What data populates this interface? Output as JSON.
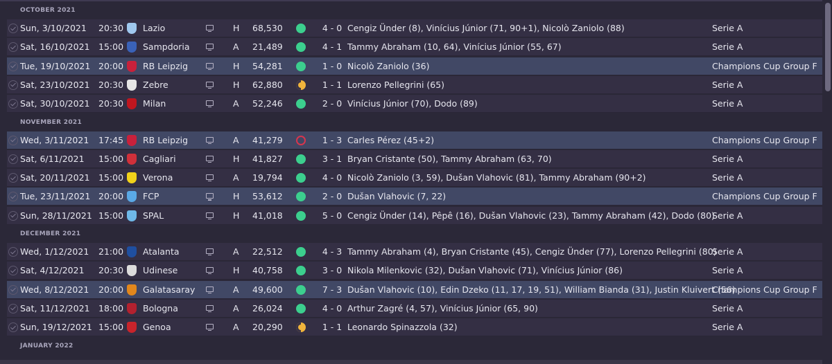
{
  "months": [
    {
      "label": "OCTOBER 2021",
      "fixtures": [
        {
          "date": "Sun, 3/10/2021",
          "time": "20:30",
          "team": "Lazio",
          "crest_color": "#9fc8ee",
          "venue": "H",
          "attendance": "68,530",
          "result": "win",
          "score": "4 - 0",
          "scorers": "Cengiz Ünder (8), Vinícius Júnior (71, 90+1), Nicolò Zaniolo (88)",
          "competition": "Serie A",
          "highlight": false
        },
        {
          "date": "Sat, 16/10/2021",
          "time": "15:00",
          "team": "Sampdoria",
          "crest_color": "#3a62b8",
          "venue": "A",
          "attendance": "21,489",
          "result": "win",
          "score": "4 - 1",
          "scorers": "Tammy Abraham (10, 64), Vinícius Júnior (55, 67)",
          "competition": "Serie A",
          "highlight": false
        },
        {
          "date": "Tue, 19/10/2021",
          "time": "20:00",
          "team": "RB Leipzig",
          "crest_color": "#c8213b",
          "venue": "H",
          "attendance": "54,281",
          "result": "win",
          "score": "1 - 0",
          "scorers": "Nicolò Zaniolo (36)",
          "competition": "Champions Cup Group F",
          "highlight": true
        },
        {
          "date": "Sat, 23/10/2021",
          "time": "20:30",
          "team": "Zebre",
          "crest_color": "#e6e6e6",
          "venue": "H",
          "attendance": "62,880",
          "result": "draw",
          "score": "1 - 1",
          "scorers": "Lorenzo Pellegrini (65)",
          "competition": "Serie A",
          "highlight": false
        },
        {
          "date": "Sat, 30/10/2021",
          "time": "20:30",
          "team": "Milan",
          "crest_color": "#c0161f",
          "venue": "A",
          "attendance": "52,246",
          "result": "win",
          "score": "2 - 0",
          "scorers": "Vinícius Júnior (70), Dodo (89)",
          "competition": "Serie A",
          "highlight": false
        }
      ]
    },
    {
      "label": "NOVEMBER 2021",
      "fixtures": [
        {
          "date": "Wed, 3/11/2021",
          "time": "17:45",
          "team": "RB Leipzig",
          "crest_color": "#c8213b",
          "venue": "A",
          "attendance": "41,279",
          "result": "loss",
          "score": "1 - 3",
          "scorers": "Carles Pérez (45+2)",
          "competition": "Champions Cup Group F",
          "highlight": true
        },
        {
          "date": "Sat, 6/11/2021",
          "time": "15:00",
          "team": "Cagliari",
          "crest_color": "#d0303a",
          "venue": "H",
          "attendance": "41,827",
          "result": "win",
          "score": "3 - 1",
          "scorers": "Bryan Cristante (50), Tammy Abraham (63, 70)",
          "competition": "Serie A",
          "highlight": false
        },
        {
          "date": "Sat, 20/11/2021",
          "time": "15:00",
          "team": "Verona",
          "crest_color": "#f1d21a",
          "venue": "A",
          "attendance": "19,794",
          "result": "win",
          "score": "4 - 0",
          "scorers": "Nicolò Zaniolo (3, 59), Dušan Vlahovic (81), Tammy Abraham (90+2)",
          "competition": "Serie A",
          "highlight": false
        },
        {
          "date": "Tue, 23/11/2021",
          "time": "20:00",
          "team": "FCP",
          "crest_color": "#5aa9e6",
          "venue": "H",
          "attendance": "53,612",
          "result": "win",
          "score": "2 - 0",
          "scorers": "Dušan Vlahovic (7, 22)",
          "competition": "Champions Cup Group F",
          "highlight": true
        },
        {
          "date": "Sun, 28/11/2021",
          "time": "15:00",
          "team": "SPAL",
          "crest_color": "#6fb9e8",
          "venue": "H",
          "attendance": "41,018",
          "result": "win",
          "score": "5 - 0",
          "scorers": "Cengiz Ünder (14), Pêpê (16), Dušan Vlahovic (23), Tammy Abraham (42), Dodo (80)",
          "competition": "Serie A",
          "highlight": false
        }
      ]
    },
    {
      "label": "DECEMBER 2021",
      "fixtures": [
        {
          "date": "Wed, 1/12/2021",
          "time": "21:00",
          "team": "Atalanta",
          "crest_color": "#1f4fa0",
          "venue": "A",
          "attendance": "22,512",
          "result": "win",
          "score": "4 - 3",
          "scorers": "Tammy Abraham (4), Bryan Cristante (45), Cengiz Ünder (77), Lorenzo Pellegrini (80)",
          "competition": "Serie A",
          "highlight": false
        },
        {
          "date": "Sat, 4/12/2021",
          "time": "20:30",
          "team": "Udinese",
          "crest_color": "#dcdcdc",
          "venue": "H",
          "attendance": "40,758",
          "result": "win",
          "score": "3 - 0",
          "scorers": "Nikola Milenkovic (32), Dušan Vlahovic (71), Vinícius Júnior (86)",
          "competition": "Serie A",
          "highlight": false
        },
        {
          "date": "Wed, 8/12/2021",
          "time": "20:00",
          "team": "Galatasaray",
          "crest_color": "#e2871c",
          "venue": "A",
          "attendance": "49,600",
          "result": "win",
          "score": "7 - 3",
          "scorers": "Dušan Vlahovic (10), Edin Dzeko (11, 17, 19, 51), William Bianda (31), Justin Kluivert (56)",
          "competition": "Champions Cup Group F",
          "highlight": true
        },
        {
          "date": "Sat, 11/12/2021",
          "time": "18:00",
          "team": "Bologna",
          "crest_color": "#b3212f",
          "venue": "A",
          "attendance": "26,024",
          "result": "win",
          "score": "4 - 0",
          "scorers": "Arthur Zagré (4, 57), Vinícius Júnior (65, 90)",
          "competition": "Serie A",
          "highlight": false
        },
        {
          "date": "Sun, 19/12/2021",
          "time": "15:00",
          "team": "Genoa",
          "crest_color": "#c8242b",
          "venue": "A",
          "attendance": "20,290",
          "result": "draw",
          "score": "1 - 1",
          "scorers": "Leonardo Spinazzola (32)",
          "competition": "Serie A",
          "highlight": false
        }
      ]
    },
    {
      "label": "JANUARY 2022",
      "fixtures": []
    }
  ]
}
